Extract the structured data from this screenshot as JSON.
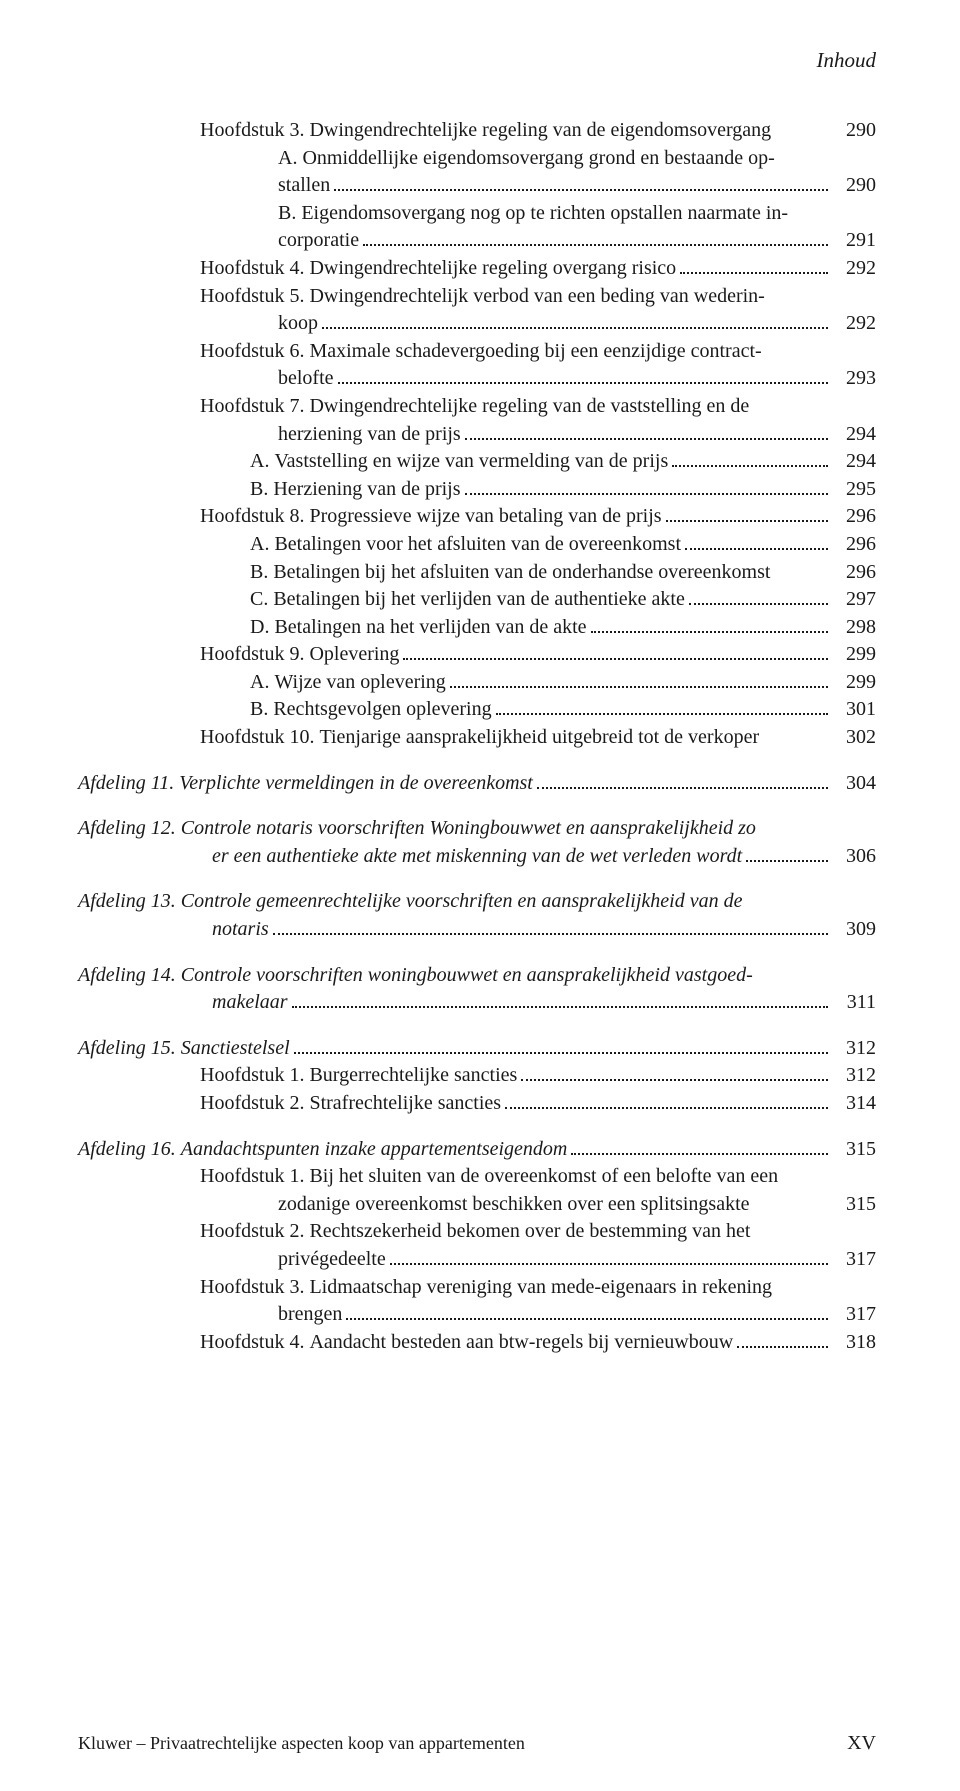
{
  "colors": {
    "background": "#ffffff",
    "text": "#1a1a1a",
    "dot": "#1a1a1a"
  },
  "typography": {
    "family": "Times New Roman",
    "body_size_pt": 15,
    "running_head_size_pt": 16
  },
  "running_head": "Inhoud",
  "footer": {
    "publisher_line": "Kluwer – Privaatrechtelijke aspecten koop van appartementen",
    "folio": "XV"
  },
  "entries": [
    {
      "id": "h3",
      "indent": 1,
      "label": "Hoofdstuk 3. ",
      "title": "Dwingendrechtelijke regeling van de eigendomsovergang",
      "page": "290",
      "dots": false,
      "continuation": [
        {
          "indent": "cont-alpha",
          "text": "A. Onmiddellijke eigendomsovergang grond en bestaande op-"
        },
        {
          "indent": "cont-alpha",
          "text": "stallen",
          "page": "290",
          "dots": true
        },
        {
          "indent": "cont-alpha",
          "text": "B. Eigendomsovergang nog op te richten opstallen naarmate in-"
        },
        {
          "indent": "cont-alpha",
          "text": "corporatie",
          "page": "291",
          "dots": true
        }
      ]
    },
    {
      "id": "h4",
      "indent": 1,
      "label": "Hoofdstuk 4. ",
      "title": "Dwingendrechtelijke regeling overgang risico",
      "page": "292",
      "dots": true
    },
    {
      "id": "h5",
      "indent": 1,
      "label": "Hoofdstuk 5. ",
      "title": "Dwingendrechtelijk verbod van een beding van wederin-",
      "continuation": [
        {
          "indent": "cont-alpha",
          "text": "koop",
          "page": "292",
          "dots": true
        }
      ]
    },
    {
      "id": "h6",
      "indent": 1,
      "label": "Hoofdstuk 6. ",
      "title": "Maximale schadevergoeding bij een eenzijdige contract-",
      "continuation": [
        {
          "indent": "cont-alpha",
          "text": "belofte",
          "page": "293",
          "dots": true
        }
      ]
    },
    {
      "id": "h7",
      "indent": 1,
      "label": "Hoofdstuk 7. ",
      "title": "Dwingendrechtelijke regeling van de vaststelling en de",
      "continuation": [
        {
          "indent": "cont-alpha",
          "text": "herziening van de prijs",
          "page": "294",
          "dots": true
        }
      ]
    },
    {
      "id": "h7a",
      "indent": 2,
      "label": "A. ",
      "title": "Vaststelling en wijze van vermelding van de prijs",
      "page": "294",
      "dots": true
    },
    {
      "id": "h7b",
      "indent": 2,
      "label": "B. ",
      "title": "Herziening van de prijs",
      "page": "295",
      "dots": true
    },
    {
      "id": "h8",
      "indent": 1,
      "label": "Hoofdstuk 8. ",
      "title": "Progressieve wijze van betaling van de prijs",
      "page": "296",
      "dots": true
    },
    {
      "id": "h8a",
      "indent": 2,
      "label": "A. ",
      "title": "Betalingen voor het afsluiten van de overeenkomst",
      "page": "296",
      "dots": true
    },
    {
      "id": "h8b",
      "indent": 2,
      "label": "B. ",
      "title": "Betalingen bij het afsluiten van de onderhandse overeenkomst",
      "page": "296",
      "dots": false
    },
    {
      "id": "h8c",
      "indent": 2,
      "label": "C. ",
      "title": "Betalingen bij het verlijden van de authentieke akte",
      "page": "297",
      "dots": true
    },
    {
      "id": "h8d",
      "indent": 2,
      "label": "D. ",
      "title": "Betalingen na het verlijden van de akte",
      "page": "298",
      "dots": true
    },
    {
      "id": "h9",
      "indent": 1,
      "label": "Hoofdstuk 9. ",
      "title": "Oplevering",
      "page": "299",
      "dots": true
    },
    {
      "id": "h9a",
      "indent": 2,
      "label": "A. ",
      "title": "Wijze van oplevering",
      "page": "299",
      "dots": true
    },
    {
      "id": "h9b",
      "indent": 2,
      "label": "B. ",
      "title": "Rechtsgevolgen oplevering",
      "page": "301",
      "dots": true
    },
    {
      "id": "h10",
      "indent": 1,
      "label": "Hoofdstuk 10. ",
      "title": "Tienjarige aansprakelijkheid uitgebreid tot de verkoper",
      "page": "302",
      "dots": false
    },
    {
      "gap": true
    },
    {
      "id": "a11",
      "indent": 0,
      "label": "Afdeling 11. ",
      "title": "Verplichte vermeldingen in de overeenkomst",
      "page": "304",
      "dots": true,
      "italic": true
    },
    {
      "gap": true
    },
    {
      "id": "a12",
      "indent": 0,
      "label": "Afdeling 12. ",
      "title": "Controle notaris voorschriften Woningbouwwet en aansprakelijkheid zo",
      "italic": true,
      "continuation": [
        {
          "indent": "cont-deep-13",
          "text": "er een authentieke akte met miskenning van de wet verleden wordt",
          "page": "306",
          "dots": true,
          "italic": true
        }
      ]
    },
    {
      "gap": true
    },
    {
      "id": "a13",
      "indent": 0,
      "label": "Afdeling 13. ",
      "title": "Controle gemeenrechtelijke voorschriften en aansprakelijkheid van de",
      "italic": true,
      "continuation": [
        {
          "indent": "cont-deep-13",
          "text": "notaris",
          "page": "309",
          "dots": true,
          "italic": true
        }
      ]
    },
    {
      "gap": true
    },
    {
      "id": "a14",
      "indent": 0,
      "label": "Afdeling 14. ",
      "title": "Controle voorschriften woningbouwwet en aansprakelijkheid vastgoed-",
      "italic": true,
      "continuation": [
        {
          "indent": "cont-deep-13",
          "text": "makelaar",
          "page": "311",
          "dots": true,
          "italic": true
        }
      ]
    },
    {
      "gap": true
    },
    {
      "id": "a15",
      "indent": 0,
      "label": "Afdeling 15. ",
      "title": "Sanctiestelsel",
      "page": "312",
      "dots": true,
      "italic": true
    },
    {
      "id": "a15h1",
      "indent": 1,
      "label": "Hoofdstuk 1. ",
      "title": "Burgerrechtelijke sancties",
      "page": "312",
      "dots": true
    },
    {
      "id": "a15h2",
      "indent": 1,
      "label": "Hoofdstuk 2. ",
      "title": "Strafrechtelijke sancties",
      "page": "314",
      "dots": true
    },
    {
      "gap": true
    },
    {
      "id": "a16",
      "indent": 0,
      "label": "Afdeling 16. ",
      "title": "Aandachtspunten inzake appartementseigendom",
      "page": "315",
      "dots": true,
      "italic": true
    },
    {
      "id": "a16h1",
      "indent": 1,
      "label": "Hoofdstuk 1. ",
      "title": "Bij het sluiten van de overeenkomst of een belofte van een",
      "continuation": [
        {
          "indent": "cont-alpha",
          "text": "zodanige overeenkomst beschikken over een splitsingsakte",
          "page": "315",
          "dots": false
        }
      ]
    },
    {
      "id": "a16h2",
      "indent": 1,
      "label": "Hoofdstuk 2. ",
      "title": "Rechtszekerheid bekomen over de bestemming van het",
      "continuation": [
        {
          "indent": "cont-alpha",
          "text": "privégedeelte",
          "page": "317",
          "dots": true
        }
      ]
    },
    {
      "id": "a16h3",
      "indent": 1,
      "label": "Hoofdstuk 3. ",
      "title": "Lidmaatschap vereniging van mede-eigenaars in rekening",
      "continuation": [
        {
          "indent": "cont-alpha",
          "text": "brengen",
          "page": "317",
          "dots": true
        }
      ]
    },
    {
      "id": "a16h4",
      "indent": 1,
      "label": "Hoofdstuk 4. ",
      "title": "Aandacht besteden aan btw-regels bij vernieuwbouw",
      "page": "318",
      "dots": true
    }
  ]
}
